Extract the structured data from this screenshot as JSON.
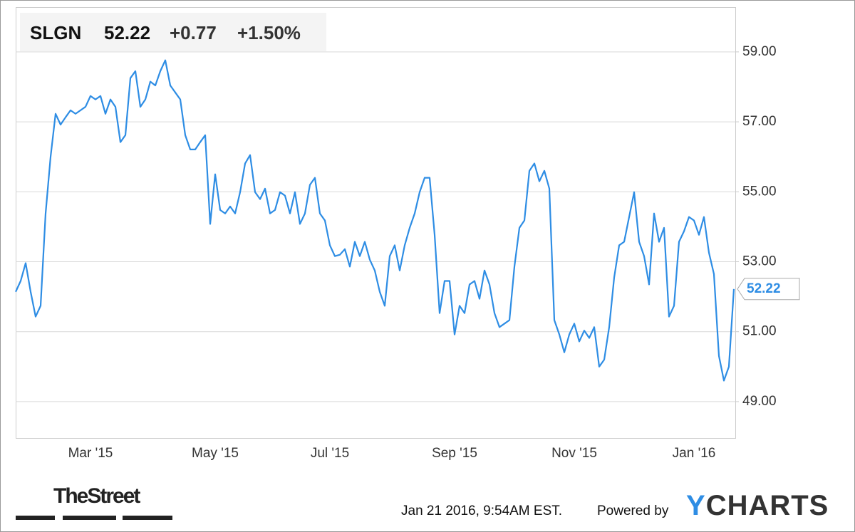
{
  "chart_data": {
    "type": "line",
    "ticker": "SLGN",
    "price": 52.22,
    "change": "+0.77",
    "change_percent": "+1.50%",
    "timestamp": "Jan 21 2016, 9:54AM EST.",
    "powered_by": "Powered by",
    "brand": "YCHARTS",
    "publisher": "TheStreet",
    "categories": [
      null,
      null,
      null,
      null,
      null,
      null,
      null,
      null,
      null,
      null,
      null,
      null,
      null,
      null,
      null,
      "Mar '15",
      null,
      null,
      null,
      null,
      null,
      null,
      null,
      null,
      null,
      null,
      null,
      null,
      null,
      null,
      null,
      null,
      null,
      null,
      null,
      null,
      null,
      null,
      null,
      null,
      "May '15",
      null,
      null,
      null,
      null,
      null,
      null,
      null,
      null,
      null,
      null,
      null,
      null,
      null,
      null,
      null,
      null,
      null,
      null,
      null,
      null,
      null,
      null,
      "Jul '15",
      null,
      null,
      null,
      null,
      null,
      null,
      null,
      null,
      null,
      null,
      null,
      null,
      null,
      null,
      null,
      null,
      null,
      null,
      null,
      null,
      null,
      null,
      null,
      null,
      "Sep '15",
      null,
      null,
      null,
      null,
      null,
      null,
      null,
      null,
      null,
      null,
      null,
      null,
      null,
      null,
      null,
      null,
      null,
      null,
      null,
      null,
      null,
      null,
      null,
      "Nov '15",
      null,
      null,
      null,
      null,
      null,
      null,
      null,
      null,
      null,
      null,
      null,
      null,
      null,
      null,
      null,
      null,
      null,
      null,
      null,
      null,
      null,
      null,
      null,
      "Jan '16",
      null,
      null,
      null,
      null,
      null,
      null,
      null,
      null
    ],
    "series": [
      {
        "name": "SLGN",
        "color": "#2e8de4",
        "values": [
          52.14,
          52.45,
          52.96,
          52.14,
          51.43,
          51.74,
          54.38,
          56.0,
          57.23,
          56.92,
          57.13,
          57.33,
          57.23,
          57.33,
          57.43,
          57.74,
          57.64,
          57.74,
          57.23,
          57.64,
          57.43,
          56.42,
          56.62,
          58.25,
          58.45,
          57.43,
          57.64,
          58.15,
          58.04,
          58.45,
          58.76,
          58.04,
          57.84,
          57.64,
          56.62,
          56.21,
          56.21,
          56.42,
          56.62,
          54.08,
          55.5,
          54.48,
          54.38,
          54.58,
          54.38,
          54.99,
          55.81,
          56.05,
          54.99,
          54.79,
          55.09,
          54.38,
          54.48,
          54.99,
          54.89,
          54.38,
          54.99,
          54.08,
          54.38,
          55.2,
          55.4,
          54.38,
          54.18,
          53.47,
          53.16,
          53.2,
          53.36,
          52.86,
          53.57,
          53.16,
          53.57,
          53.06,
          52.75,
          52.14,
          51.74,
          53.16,
          53.47,
          52.75,
          53.47,
          53.97,
          54.38,
          54.99,
          55.4,
          55.4,
          53.77,
          51.53,
          52.45,
          52.45,
          50.92,
          51.74,
          51.53,
          52.35,
          52.45,
          51.94,
          52.75,
          52.35,
          51.53,
          51.13,
          51.23,
          51.33,
          52.86,
          53.97,
          54.18,
          55.6,
          55.81,
          55.3,
          55.6,
          55.09,
          51.33,
          50.92,
          50.41,
          50.92,
          51.23,
          50.72,
          51.03,
          50.82,
          51.13,
          50.0,
          50.2,
          51.13,
          52.55,
          53.47,
          53.57,
          54.28,
          54.99,
          53.57,
          53.16,
          52.35,
          54.38,
          53.57,
          53.97,
          51.43,
          51.74,
          53.57,
          53.87,
          54.28,
          54.18,
          53.77,
          54.28,
          53.26,
          52.65,
          50.31,
          49.6,
          50.0,
          52.22
        ]
      }
    ],
    "ylim": [
      47.96,
      60.28
    ],
    "yticks": [
      {
        "value": 49,
        "label": "49.00"
      },
      {
        "value": 51,
        "label": "51.00"
      },
      {
        "value": 53,
        "label": "53.00"
      },
      {
        "value": 55,
        "label": "55.00"
      },
      {
        "value": 57,
        "label": "57.00"
      },
      {
        "value": 59,
        "label": "59.00"
      }
    ],
    "grid": true,
    "change_color": "#3a9c1f"
  }
}
